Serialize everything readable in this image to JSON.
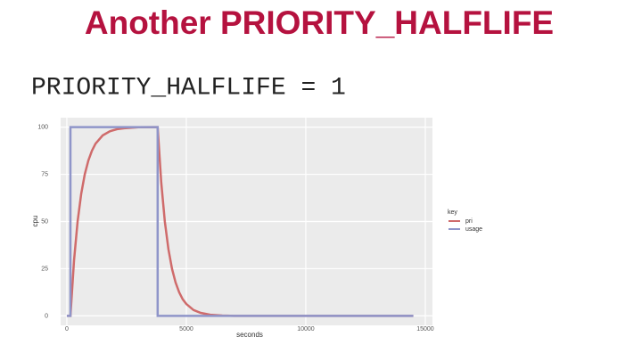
{
  "slide": {
    "title": "Another PRIORITY_HALFLIFE",
    "code": "PRIORITY_HALFLIFE = 1"
  },
  "chart_data": {
    "type": "line",
    "x_label": "seconds",
    "y_label": "cpu",
    "legend_title": "key",
    "xlim": [
      -260,
      15300
    ],
    "ylim": [
      -5,
      105
    ],
    "xticks": [
      0,
      5000,
      10000,
      15000
    ],
    "yticks": [
      0,
      25,
      50,
      75,
      100
    ],
    "grid": true,
    "series": [
      {
        "name": "pri",
        "color": "#cf6b6b",
        "x": [
          0,
          150,
          300,
          450,
          600,
          750,
          900,
          1050,
          1200,
          1500,
          1800,
          2100,
          2400,
          3000,
          3800,
          3950,
          4100,
          4250,
          4400,
          4550,
          4700,
          4850,
          5000,
          5300,
          5600,
          6000,
          6500,
          7000,
          14500
        ],
        "values": [
          0,
          0,
          29.3,
          50,
          64.6,
          75,
          82.3,
          87.5,
          91.2,
          95.6,
          97.8,
          98.9,
          99.4,
          99.9,
          100,
          70.7,
          50,
          35.4,
          25,
          17.7,
          12.5,
          8.8,
          6.3,
          3.1,
          1.6,
          0.6,
          0.2,
          0,
          0
        ]
      },
      {
        "name": "usage",
        "color": "#8f95c9",
        "x": [
          0,
          150,
          150,
          3800,
          3800,
          14500
        ],
        "values": [
          0,
          0,
          100,
          100,
          0,
          0
        ]
      }
    ]
  }
}
